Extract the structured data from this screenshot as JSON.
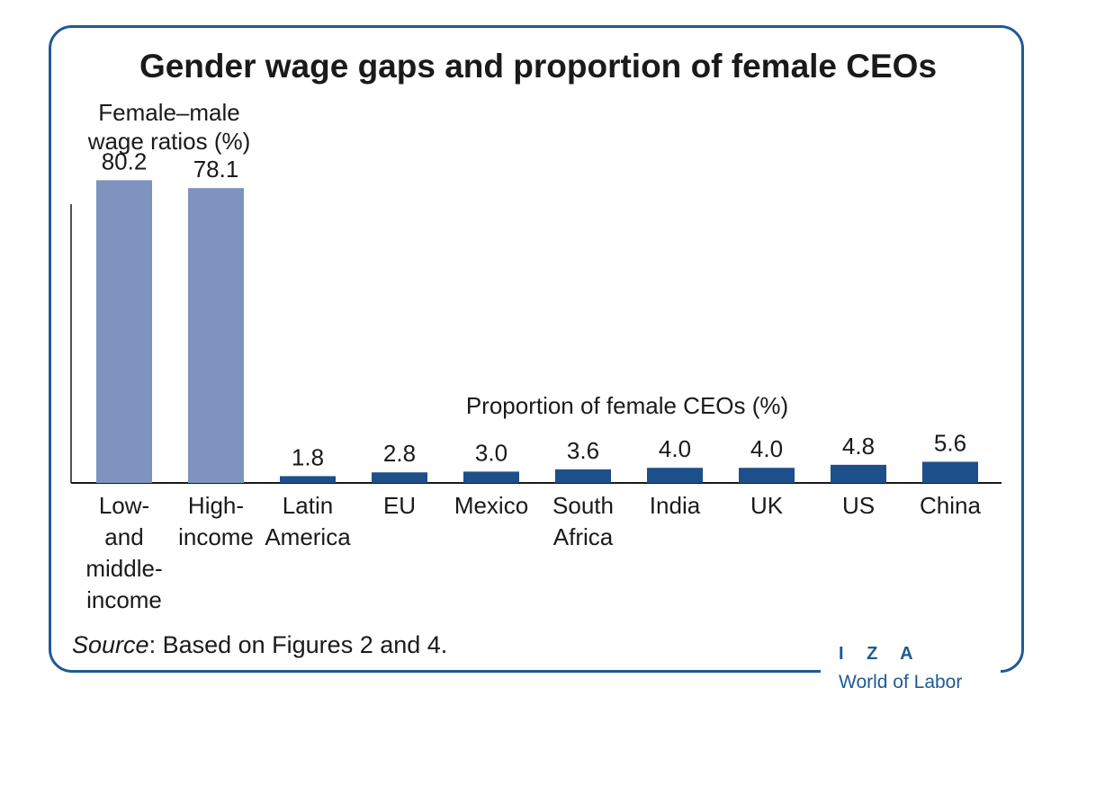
{
  "colors": {
    "frame": "#1f5a96",
    "wage_bar": "#7e93bd",
    "ceo_bar": "#1d4f8a",
    "brand": "#1f5a96"
  },
  "chart_data": {
    "type": "bar",
    "title": "Gender wage gaps and proportion of female CEOs",
    "categories": [
      "Low-\nand\nmiddle-\nincome",
      "High-\nincome",
      "Latin\nAmerica",
      "EU",
      "Mexico",
      "South\nAfrica",
      "India",
      "UK",
      "US",
      "China"
    ],
    "series": [
      {
        "name": "Female–male\nwage ratios (%)",
        "color": "#7e93bd",
        "values": [
          80.2,
          78.1,
          null,
          null,
          null,
          null,
          null,
          null,
          null,
          null
        ],
        "labels": [
          "80.2",
          "78.1",
          null,
          null,
          null,
          null,
          null,
          null,
          null,
          null
        ]
      },
      {
        "name": "Proportion of female CEOs (%)",
        "color": "#1d4f8a",
        "values": [
          null,
          null,
          1.8,
          2.8,
          3.0,
          3.6,
          4.0,
          4.0,
          4.8,
          5.6
        ],
        "labels": [
          null,
          null,
          "1.8",
          "2.8",
          "3.0",
          "3.6",
          "4.0",
          "4.0",
          "4.8",
          "5.6"
        ]
      }
    ],
    "ylim": [
      0,
      81
    ],
    "grid": false,
    "legend": "inline labels"
  },
  "source": {
    "italic": "Source",
    "rest": ": Based on Figures 2 and 4."
  },
  "brand": {
    "line1": "I Z A",
    "line2": "World of Labor"
  }
}
